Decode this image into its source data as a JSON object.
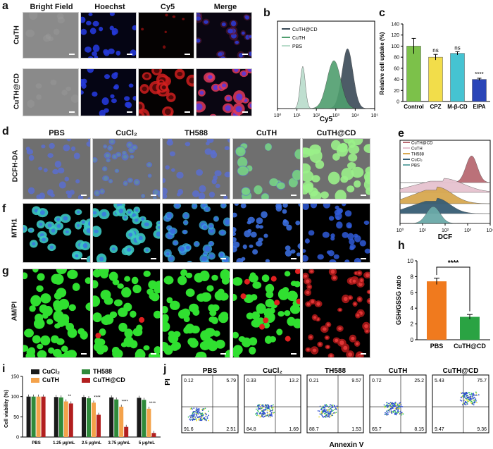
{
  "panel_labels": {
    "a": "a",
    "b": "b",
    "c": "c",
    "d": "d",
    "e": "e",
    "f": "f",
    "g": "g",
    "h": "h",
    "i": "i",
    "j": "j"
  },
  "panel_a": {
    "columns": [
      "Bright Field",
      "Hoechst",
      "Cy5",
      "Merge"
    ],
    "rows": [
      "CuTH",
      "CuTH@CD"
    ]
  },
  "panel_dfg": {
    "columns": [
      "PBS",
      "CuCl₂",
      "TH588",
      "CuTH",
      "CuTH@CD"
    ],
    "rows": [
      "DCFH-DA",
      "MTH1",
      "AM/PI"
    ]
  },
  "chart_data": [
    {
      "panel": "b",
      "type": "area",
      "xlabel": "Cy5",
      "xscale": "log",
      "xlim": [
        1,
        100000
      ],
      "xticks": [
        "10⁰",
        "10¹",
        "10²",
        "10³",
        "10⁴",
        "10⁵"
      ],
      "series": [
        {
          "name": "CuTH@CD",
          "color": "#3a4a57",
          "peak_x": 4000
        },
        {
          "name": "CuTH",
          "color": "#4f9e6e",
          "peak_x": 800
        },
        {
          "name": "PBS",
          "color": "#b9dccb",
          "peak_x": 20
        }
      ]
    },
    {
      "panel": "c",
      "type": "bar",
      "ylabel": "Relative cell uptake (%)",
      "ylim": [
        0,
        140
      ],
      "yticks": [
        "0",
        "20",
        "40",
        "60",
        "80",
        "100",
        "120",
        "140"
      ],
      "categories": [
        "Control",
        "CPZ",
        "M-β-CD",
        "EIPA"
      ],
      "values": [
        100,
        80,
        87,
        40
      ],
      "errors": [
        14,
        5,
        3,
        2
      ],
      "colors": [
        "#7cc14a",
        "#f2dd4a",
        "#45c3d2",
        "#2a45b8"
      ],
      "annotations": [
        "",
        "ns",
        "ns",
        "****"
      ]
    },
    {
      "panel": "e",
      "type": "area",
      "xlabel": "DCF",
      "xscale": "log",
      "xlim": [
        1,
        10000
      ],
      "xticks": [
        "10⁰",
        "10¹",
        "10²",
        "10³",
        "10⁴"
      ],
      "series": [
        {
          "name": "CuTH@CD",
          "color": "#b86a72",
          "peak_x": 1500
        },
        {
          "name": "CuTH",
          "color": "#e6c2cf",
          "peak_x": 80
        },
        {
          "name": "TH588",
          "color": "#d8a850",
          "peak_x": 40
        },
        {
          "name": "CuCl₂",
          "color": "#375d74",
          "peak_x": 40
        },
        {
          "name": "PBS",
          "color": "#6aa9a8",
          "peak_x": 30
        }
      ]
    },
    {
      "panel": "h",
      "type": "bar",
      "ylabel": "GSH/GSSG ratio",
      "ylim": [
        0,
        10
      ],
      "yticks": [
        "0",
        "2",
        "4",
        "6",
        "8",
        "10"
      ],
      "categories": [
        "PBS",
        "CuTH@CD"
      ],
      "values": [
        7.4,
        2.9
      ],
      "errors": [
        0.4,
        0.3
      ],
      "colors": [
        "#f07a1e",
        "#2aa343"
      ],
      "significance": "****"
    },
    {
      "panel": "i",
      "type": "bar",
      "ylabel": "Cell viability (%)",
      "ylim": [
        0,
        150
      ],
      "yticks": [
        "0",
        "50",
        "100",
        "150"
      ],
      "categories": [
        "PBS",
        "1.25 μg/mL",
        "2.5 μg/mL",
        "3.75 μg/mL",
        "5 μg/mL"
      ],
      "series": [
        {
          "name": "CuCl₂",
          "color": "#1a1a1a",
          "values": [
            100,
            99,
            99,
            98,
            97
          ]
        },
        {
          "name": "TH588",
          "color": "#2f8a3a",
          "values": [
            100,
            98,
            96,
            93,
            92
          ]
        },
        {
          "name": "CuTH",
          "color": "#f4a24a",
          "values": [
            100,
            88,
            85,
            75,
            70
          ]
        },
        {
          "name": "CuTH@CD",
          "color": "#b21f1f",
          "values": [
            100,
            83,
            55,
            25,
            10
          ]
        }
      ],
      "annotations": [
        "",
        "**",
        "****",
        "****",
        "****"
      ]
    },
    {
      "panel": "j",
      "type": "scatter",
      "xlabel": "Annexin V",
      "ylabel": "PI",
      "ticks": [
        "10⁰",
        "10¹",
        "10²",
        "10³",
        "10⁴",
        "10⁵",
        "10⁶"
      ],
      "plots": [
        {
          "title": "PBS",
          "ul": "0.12",
          "ur": "5.79",
          "ll": "91.6",
          "lr": "2.51"
        },
        {
          "title": "CuCl₂",
          "ul": "0.33",
          "ur": "13.2",
          "ll": "84.8",
          "lr": "1.69"
        },
        {
          "title": "TH588",
          "ul": "0.21",
          "ur": "9.57",
          "ll": "88.7",
          "lr": "1.53"
        },
        {
          "title": "CuTH",
          "ul": "0.72",
          "ur": "25.2",
          "ll": "65.7",
          "lr": "8.15"
        },
        {
          "title": "CuTH@CD",
          "ul": "5.43",
          "ur": "75.7",
          "ll": "9.47",
          "lr": "9.36"
        }
      ]
    }
  ]
}
